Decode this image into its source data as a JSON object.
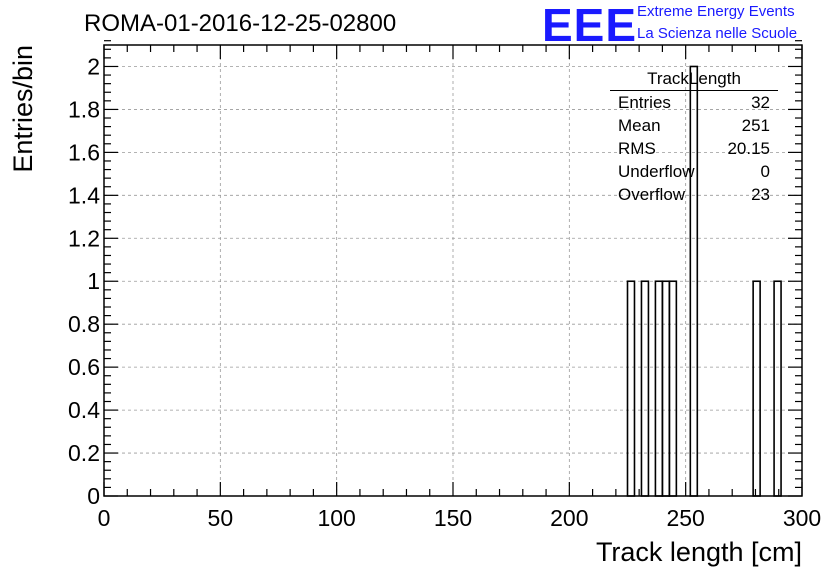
{
  "header": {
    "title": "ROMA-01-2016-12-25-02800",
    "logo_text": "EEE",
    "logo_line1": "Extreme Energy Events",
    "logo_line2": "La Scienza nelle Scuole"
  },
  "stats_box": {
    "title": "TrackLength",
    "rows": [
      {
        "label": "Entries",
        "value": "32"
      },
      {
        "label": "Mean",
        "value": "251"
      },
      {
        "label": "RMS",
        "value": "20.15"
      },
      {
        "label": "Underflow",
        "value": "0"
      },
      {
        "label": "Overflow",
        "value": "23"
      }
    ]
  },
  "chart_data": {
    "type": "bar",
    "title": "ROMA-01-2016-12-25-02800",
    "xlabel": "Track length [cm]",
    "ylabel": "Entries/bin",
    "xlim": [
      0,
      300
    ],
    "ylim": [
      0,
      2.1
    ],
    "grid": true,
    "x_ticks": [
      0,
      50,
      100,
      150,
      200,
      250,
      300
    ],
    "y_ticks": [
      0,
      0.2,
      0.4,
      0.6,
      0.8,
      1,
      1.2,
      1.4,
      1.6,
      1.8,
      2
    ],
    "bin_width": 3,
    "bins": [
      {
        "x": 225,
        "value": 1
      },
      {
        "x": 231,
        "value": 1
      },
      {
        "x": 237,
        "value": 1
      },
      {
        "x": 240,
        "value": 1
      },
      {
        "x": 243,
        "value": 1
      },
      {
        "x": 252,
        "value": 2
      },
      {
        "x": 279,
        "value": 1
      },
      {
        "x": 288,
        "value": 1
      }
    ],
    "colors": {
      "line": "#000000",
      "grid": "#9a9a9a"
    }
  }
}
